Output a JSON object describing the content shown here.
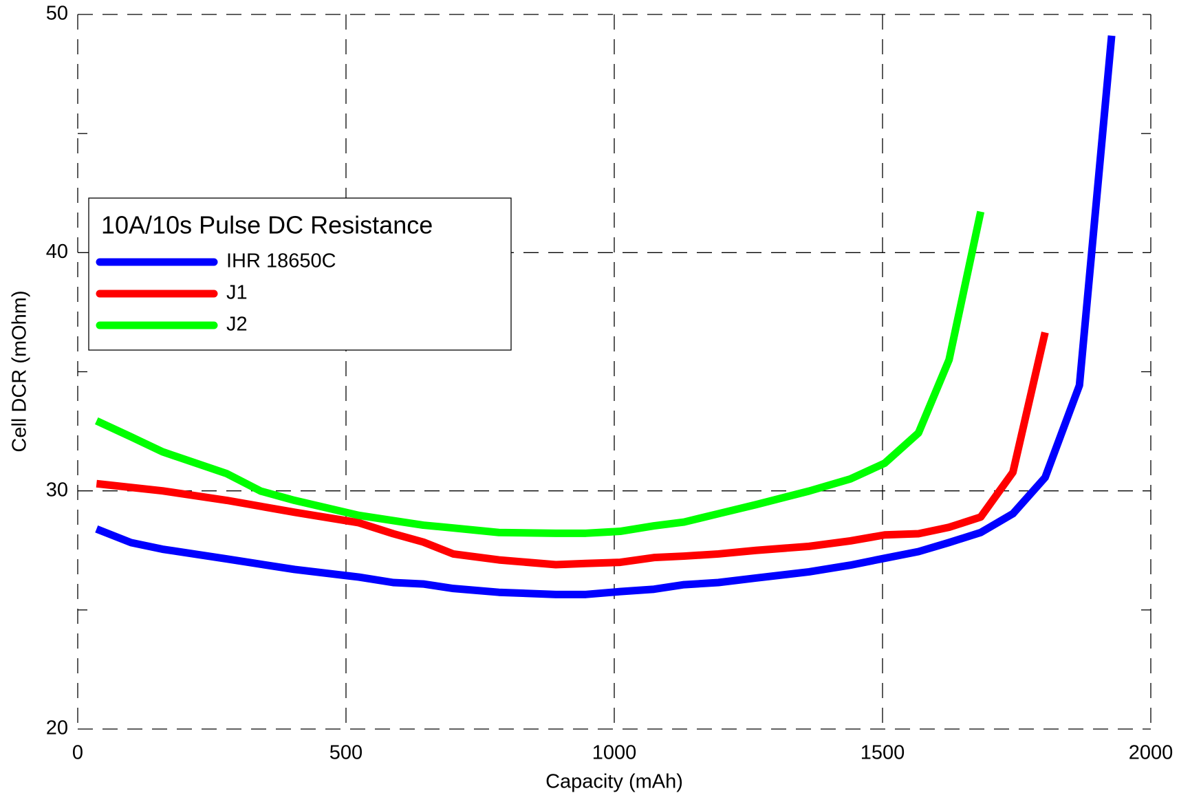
{
  "chart_data": {
    "type": "line",
    "xlabel": "Capacity (mAh)",
    "ylabel": "Cell DCR (mOhm)",
    "legend_title": "10A/10s Pulse DC Resistance",
    "xlim": [
      0,
      2000
    ],
    "xticks": [
      0,
      500,
      1000,
      1500,
      2000
    ],
    "ylim": [
      20,
      50
    ],
    "yticks": [
      20,
      30,
      40,
      50
    ],
    "yminor": [
      25,
      35,
      45
    ],
    "grid": true,
    "legend": "upper left",
    "series": [
      {
        "name": "IHR 18650C",
        "color": "#0000ff",
        "x": [
          35,
          99,
          158,
          278,
          404,
          524,
          588,
          644,
          700,
          785,
          891,
          947,
          1011,
          1074,
          1130,
          1194,
          1264,
          1363,
          1440,
          1504,
          1567,
          1624,
          1683,
          1743,
          1803,
          1867,
          1927
        ],
        "values": [
          28.4,
          27.83,
          27.55,
          27.14,
          26.7,
          26.38,
          26.15,
          26.09,
          25.9,
          25.74,
          25.65,
          25.65,
          25.77,
          25.87,
          26.06,
          26.15,
          26.34,
          26.6,
          26.88,
          27.17,
          27.45,
          27.83,
          28.25,
          29.04,
          30.56,
          34.43,
          49.11
        ]
      },
      {
        "name": "J1",
        "color": "#ff0000",
        "x": [
          35,
          158,
          278,
          404,
          524,
          588,
          644,
          700,
          785,
          891,
          947,
          1011,
          1074,
          1130,
          1194,
          1264,
          1363,
          1440,
          1504,
          1567,
          1624,
          1683,
          1743,
          1803
        ],
        "values": [
          30.3,
          30.0,
          29.6,
          29.1,
          28.66,
          28.2,
          27.85,
          27.35,
          27.1,
          26.9,
          26.95,
          27.0,
          27.2,
          27.26,
          27.35,
          27.5,
          27.67,
          27.9,
          28.15,
          28.2,
          28.47,
          28.9,
          30.78,
          36.65
        ]
      },
      {
        "name": "J2",
        "color": "#00ff00",
        "x": [
          35,
          99,
          158,
          278,
          341,
          404,
          524,
          588,
          644,
          700,
          785,
          891,
          947,
          1011,
          1074,
          1130,
          1194,
          1264,
          1363,
          1440,
          1504,
          1567,
          1624,
          1683
        ],
        "values": [
          32.94,
          32.27,
          31.64,
          30.72,
          29.99,
          29.6,
          28.97,
          28.75,
          28.56,
          28.44,
          28.25,
          28.22,
          28.22,
          28.3,
          28.53,
          28.69,
          29.04,
          29.42,
          29.99,
          30.5,
          31.16,
          32.43,
          35.5,
          41.72
        ]
      }
    ]
  }
}
